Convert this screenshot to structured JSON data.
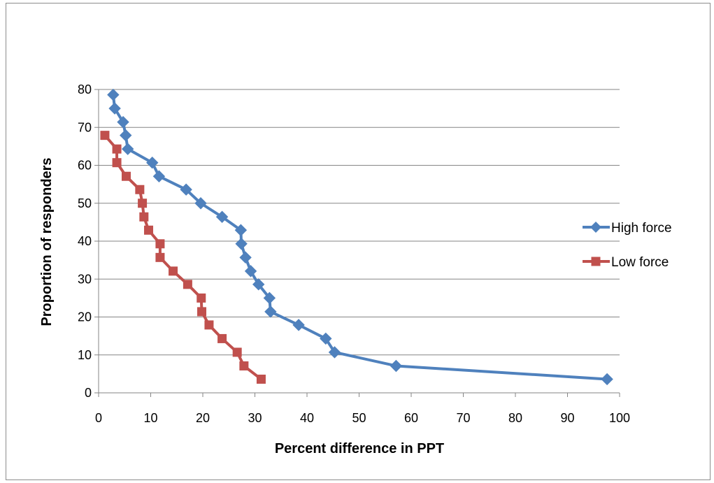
{
  "chart_data": {
    "type": "line",
    "title": "",
    "xlabel": "Percent difference in PPT",
    "ylabel": "Proportion of responders",
    "xlim": [
      0,
      100
    ],
    "ylim": [
      0,
      80
    ],
    "x_ticks": [
      "0",
      "10",
      "20",
      "30",
      "40",
      "50",
      "60",
      "70",
      "80",
      "90",
      "100"
    ],
    "y_ticks": [
      "0",
      "10",
      "20",
      "30",
      "40",
      "50",
      "60",
      "70",
      "80"
    ],
    "grid": "horizontal",
    "legend_position": "right",
    "series": [
      {
        "name": "High force",
        "color": "#4f81bd",
        "marker": "diamond",
        "points": [
          [
            2.8,
            78.6
          ],
          [
            3.1,
            75.0
          ],
          [
            4.7,
            71.4
          ],
          [
            5.2,
            67.9
          ],
          [
            5.6,
            64.3
          ],
          [
            10.3,
            60.7
          ],
          [
            11.6,
            57.1
          ],
          [
            16.8,
            53.6
          ],
          [
            19.6,
            50.0
          ],
          [
            23.7,
            46.4
          ],
          [
            27.3,
            42.9
          ],
          [
            27.4,
            39.3
          ],
          [
            28.2,
            35.7
          ],
          [
            29.2,
            32.1
          ],
          [
            30.7,
            28.6
          ],
          [
            32.8,
            25.0
          ],
          [
            33.0,
            21.4
          ],
          [
            38.4,
            17.9
          ],
          [
            43.6,
            14.3
          ],
          [
            45.3,
            10.7
          ],
          [
            57.1,
            7.1
          ],
          [
            97.6,
            3.6
          ]
        ]
      },
      {
        "name": "Low force",
        "color": "#c0504d",
        "marker": "square",
        "points": [
          [
            1.2,
            67.9
          ],
          [
            3.5,
            64.3
          ],
          [
            3.5,
            60.7
          ],
          [
            5.3,
            57.1
          ],
          [
            7.9,
            53.6
          ],
          [
            8.4,
            50.0
          ],
          [
            8.7,
            46.4
          ],
          [
            9.6,
            42.9
          ],
          [
            11.8,
            39.3
          ],
          [
            11.8,
            35.7
          ],
          [
            14.3,
            32.1
          ],
          [
            17.1,
            28.6
          ],
          [
            19.7,
            25.0
          ],
          [
            19.8,
            21.4
          ],
          [
            21.2,
            17.9
          ],
          [
            23.7,
            14.3
          ],
          [
            26.6,
            10.7
          ],
          [
            27.9,
            7.1
          ],
          [
            31.2,
            3.6
          ]
        ]
      }
    ]
  }
}
